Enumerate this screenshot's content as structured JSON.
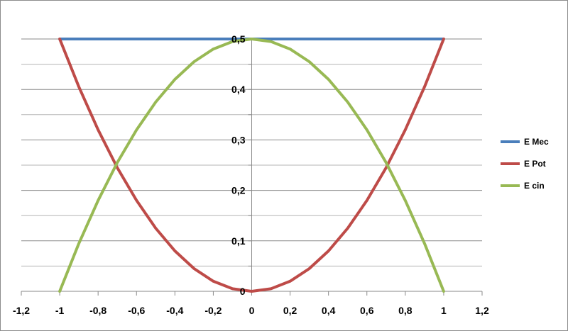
{
  "chart_data": {
    "type": "line",
    "title": "",
    "xlabel": "",
    "ylabel": "",
    "xlim": [
      -1.2,
      1.2
    ],
    "ylim": [
      0,
      0.5
    ],
    "x_ticks": [
      "-1,2",
      "-1",
      "-0,8",
      "-0,6",
      "-0,4",
      "-0,2",
      "0",
      "0,2",
      "0,4",
      "0,6",
      "0,8",
      "1",
      "1,2"
    ],
    "y_ticks": [
      "0",
      "0,1",
      "0,2",
      "0,3",
      "0,4",
      "0,5"
    ],
    "grid": "horizontal major and minor gridlines",
    "legend_position": "right",
    "series": [
      {
        "name": "E Mec",
        "color": "#4a7ebb",
        "x": [
          -1,
          -0.75,
          -0.5,
          -0.25,
          0,
          0.25,
          0.5,
          0.75,
          1
        ],
        "y": [
          0.5,
          0.5,
          0.5,
          0.5,
          0.5,
          0.5,
          0.5,
          0.5,
          0.5
        ]
      },
      {
        "name": "E Pot",
        "color": "#be4b48",
        "x": [
          -1,
          -0.9,
          -0.8,
          -0.7,
          -0.6,
          -0.5,
          -0.4,
          -0.3,
          -0.2,
          -0.1,
          0,
          0.1,
          0.2,
          0.3,
          0.4,
          0.5,
          0.6,
          0.7,
          0.8,
          0.9,
          1
        ],
        "y": [
          0.5,
          0.405,
          0.32,
          0.245,
          0.18,
          0.125,
          0.08,
          0.045,
          0.02,
          0.005,
          0,
          0.005,
          0.02,
          0.045,
          0.08,
          0.125,
          0.18,
          0.245,
          0.32,
          0.405,
          0.5
        ]
      },
      {
        "name": "E cin",
        "color": "#98b954",
        "x": [
          -1,
          -0.9,
          -0.8,
          -0.7,
          -0.6,
          -0.5,
          -0.4,
          -0.3,
          -0.2,
          -0.1,
          0,
          0.1,
          0.2,
          0.3,
          0.4,
          0.5,
          0.6,
          0.7,
          0.8,
          0.9,
          1
        ],
        "y": [
          0,
          0.095,
          0.18,
          0.255,
          0.32,
          0.375,
          0.42,
          0.455,
          0.48,
          0.495,
          0.5,
          0.495,
          0.48,
          0.455,
          0.42,
          0.375,
          0.32,
          0.255,
          0.18,
          0.095,
          0
        ]
      }
    ]
  }
}
